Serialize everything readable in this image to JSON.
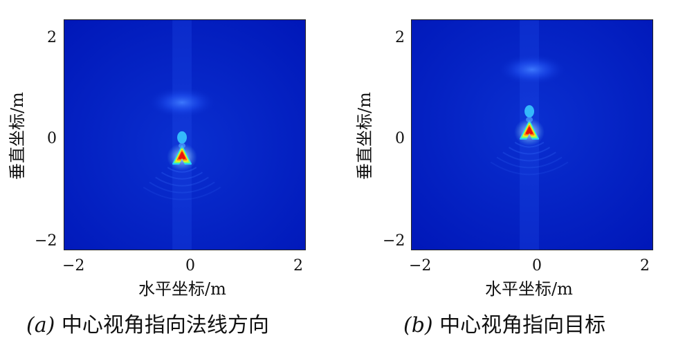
{
  "chart_data": [
    {
      "type": "heatmap",
      "caption_tag": "(a)",
      "caption": "中心视角指向法线方向",
      "xlabel": "水平坐标/m",
      "ylabel": "垂直坐标/m",
      "xlim": [
        -2.2,
        2.2
      ],
      "ylim": [
        -2.2,
        2.2
      ],
      "xticks": [
        "−2",
        "0",
        "2"
      ],
      "yticks": [
        "2",
        "0",
        "−2"
      ],
      "colormap": "jet",
      "features": [
        {
          "kind": "peak",
          "x": -0.05,
          "y": -0.4,
          "level": 1.0
        },
        {
          "kind": "sidelobe",
          "x": -0.05,
          "y": -0.05,
          "level": 0.35
        },
        {
          "kind": "glow",
          "x": -0.05,
          "y": 0.62,
          "level": 0.3
        }
      ]
    },
    {
      "type": "heatmap",
      "caption_tag": "(b)",
      "caption": "中心视角指向目标",
      "xlabel": "水平坐标/m",
      "ylabel": "垂直坐标/m",
      "xlim": [
        -2.2,
        2.2
      ],
      "ylim": [
        -2.2,
        2.2
      ],
      "xticks": [
        "−2",
        "0",
        "2"
      ],
      "yticks": [
        "2",
        "0",
        "−2"
      ],
      "colormap": "jet",
      "features": [
        {
          "kind": "peak",
          "x": -0.05,
          "y": 0.08,
          "level": 1.0
        },
        {
          "kind": "sidelobe",
          "x": -0.05,
          "y": 0.45,
          "level": 0.35
        },
        {
          "kind": "glow",
          "x": 0.0,
          "y": 1.25,
          "level": 0.3
        }
      ]
    }
  ]
}
